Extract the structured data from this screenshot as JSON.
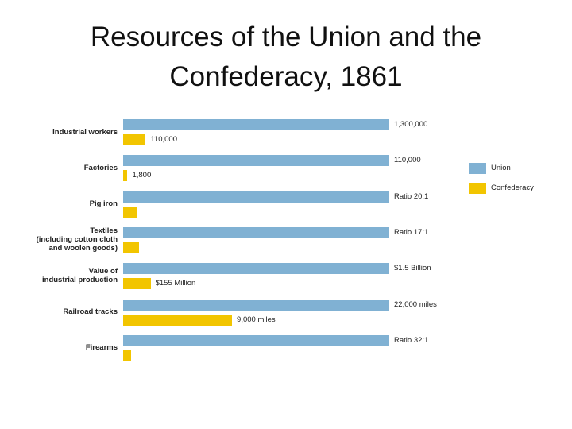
{
  "chart_data": {
    "type": "bar",
    "orientation": "horizontal",
    "title": "Resources of the Union and the Confederacy, 1861",
    "categories": [
      "Industrial workers",
      "Factories",
      "Pig iron",
      "Textiles\n(including cotton cloth\nand woolen goods)",
      "Value of\nindustrial production",
      "Railroad tracks",
      "Firearms"
    ],
    "series": [
      {
        "name": "Union",
        "color": "#80b1d3",
        "values": [
          1300000,
          110000,
          20,
          17,
          1500000000,
          22000,
          32
        ],
        "value_labels": [
          "1,300,000",
          "110,000",
          "Ratio 20:1",
          "Ratio 17:1",
          "$1.5 Billion",
          "22,000 miles",
          "Ratio 32:1"
        ]
      },
      {
        "name": "Confederacy",
        "color": "#f2c500",
        "values": [
          110000,
          1800,
          1,
          1,
          155000000,
          9000,
          1
        ],
        "value_labels": [
          "110,000",
          "1,800",
          null,
          null,
          "$155 Million",
          "9,000 miles",
          null
        ]
      }
    ],
    "legend": "right"
  }
}
